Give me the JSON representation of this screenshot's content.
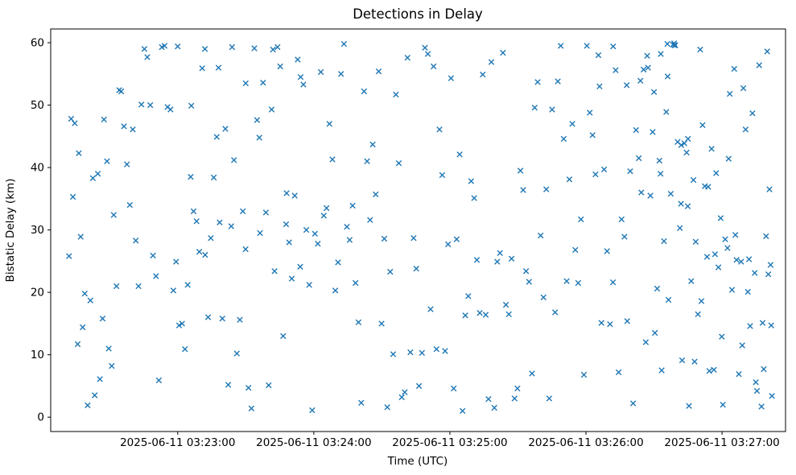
{
  "chart_data": {
    "type": "scatter",
    "title": "Detections in Delay",
    "xlabel": "Time (UTC)",
    "ylabel": "Bistatic Delay (km)",
    "marker": "x",
    "marker_color": "#1f77b4",
    "grid": false,
    "legend": "none",
    "x_axis_note": "x values are seconds after 2025-06-11 03:22:00 UTC",
    "xlim": [
      4,
      328
    ],
    "ylim": [
      -2.3,
      62.2
    ],
    "x_ticks": [
      {
        "t": 60,
        "label": "2025-06-11 03:23:00"
      },
      {
        "t": 120,
        "label": "2025-06-11 03:24:00"
      },
      {
        "t": 180,
        "label": "2025-06-11 03:25:00"
      },
      {
        "t": 240,
        "label": "2025-06-11 03:26:00"
      },
      {
        "t": 300,
        "label": "2025-06-11 03:27:00"
      }
    ],
    "y_ticks": [
      0,
      10,
      20,
      30,
      40,
      50,
      60
    ],
    "points": [
      [
        12.1,
        25.8
      ],
      [
        13.0,
        47.8
      ],
      [
        13.8,
        35.3
      ],
      [
        14.6,
        47.1
      ],
      [
        15.9,
        11.7
      ],
      [
        16.4,
        42.3
      ],
      [
        17.2,
        28.9
      ],
      [
        18.1,
        14.4
      ],
      [
        19.0,
        19.8
      ],
      [
        20.3,
        1.9
      ],
      [
        21.5,
        18.7
      ],
      [
        22.6,
        38.3
      ],
      [
        23.4,
        3.5
      ],
      [
        24.8,
        39.0
      ],
      [
        25.7,
        6.1
      ],
      [
        26.9,
        15.8
      ],
      [
        27.5,
        47.7
      ],
      [
        28.8,
        41.0
      ],
      [
        29.6,
        11.0
      ],
      [
        30.9,
        8.2
      ],
      [
        31.8,
        32.4
      ],
      [
        33.0,
        21.0
      ],
      [
        34.2,
        52.4
      ],
      [
        35.1,
        52.2
      ],
      [
        36.3,
        46.6
      ],
      [
        37.6,
        40.5
      ],
      [
        38.9,
        34.0
      ],
      [
        40.2,
        46.1
      ],
      [
        41.5,
        28.3
      ],
      [
        42.7,
        21.0
      ],
      [
        44.0,
        50.1
      ],
      [
        45.3,
        59.0
      ],
      [
        46.6,
        57.7
      ],
      [
        47.9,
        50.0
      ],
      [
        49.1,
        25.9
      ],
      [
        50.4,
        22.6
      ],
      [
        51.7,
        5.9
      ],
      [
        53.0,
        59.3
      ],
      [
        54.2,
        59.5
      ],
      [
        55.5,
        49.7
      ],
      [
        56.8,
        49.3
      ],
      [
        58.1,
        20.3
      ],
      [
        59.3,
        24.9
      ],
      [
        60.6,
        14.7
      ],
      [
        61.9,
        15.0
      ],
      [
        63.2,
        10.9
      ],
      [
        64.4,
        21.2
      ],
      [
        65.7,
        38.5
      ],
      [
        67.0,
        33.0
      ],
      [
        68.3,
        31.4
      ],
      [
        69.5,
        26.5
      ],
      [
        70.8,
        55.9
      ],
      [
        72.1,
        26.0
      ],
      [
        73.4,
        16.0
      ],
      [
        74.6,
        28.7
      ],
      [
        75.9,
        38.4
      ],
      [
        77.2,
        44.9
      ],
      [
        78.5,
        31.2
      ],
      [
        79.7,
        15.8
      ],
      [
        81.0,
        46.2
      ],
      [
        82.3,
        5.2
      ],
      [
        83.6,
        30.6
      ],
      [
        84.8,
        41.2
      ],
      [
        86.1,
        10.2
      ],
      [
        87.4,
        15.6
      ],
      [
        88.7,
        33.0
      ],
      [
        89.9,
        26.9
      ],
      [
        91.2,
        4.7
      ],
      [
        92.5,
        1.4
      ],
      [
        93.8,
        59.1
      ],
      [
        95.0,
        47.6
      ],
      [
        96.3,
        29.5
      ],
      [
        97.6,
        53.6
      ],
      [
        98.9,
        32.8
      ],
      [
        100.1,
        5.1
      ],
      [
        101.4,
        49.3
      ],
      [
        102.7,
        23.4
      ],
      [
        104.0,
        59.3
      ],
      [
        105.2,
        56.2
      ],
      [
        106.5,
        13.0
      ],
      [
        107.8,
        30.9
      ],
      [
        109.1,
        28.0
      ],
      [
        110.3,
        22.2
      ],
      [
        111.6,
        35.5
      ],
      [
        112.9,
        57.3
      ],
      [
        114.2,
        54.5
      ],
      [
        115.4,
        53.3
      ],
      [
        116.7,
        30.0
      ],
      [
        118.0,
        21.2
      ],
      [
        119.3,
        1.1
      ],
      [
        120.5,
        29.4
      ],
      [
        121.8,
        27.8
      ],
      [
        123.1,
        55.3
      ],
      [
        124.4,
        32.3
      ],
      [
        125.6,
        33.5
      ],
      [
        126.9,
        47.0
      ],
      [
        128.2,
        41.3
      ],
      [
        129.5,
        20.3
      ],
      [
        130.7,
        24.8
      ],
      [
        132.0,
        55.0
      ],
      [
        133.3,
        59.8
      ],
      [
        134.6,
        30.5
      ],
      [
        135.8,
        28.4
      ],
      [
        137.1,
        33.9
      ],
      [
        138.4,
        21.5
      ],
      [
        139.7,
        15.2
      ],
      [
        140.9,
        2.3
      ],
      [
        142.2,
        52.2
      ],
      [
        143.5,
        41.0
      ],
      [
        144.8,
        31.6
      ],
      [
        146.0,
        43.7
      ],
      [
        147.3,
        35.7
      ],
      [
        148.6,
        55.4
      ],
      [
        149.9,
        15.0
      ],
      [
        151.1,
        28.6
      ],
      [
        152.4,
        1.6
      ],
      [
        153.7,
        23.3
      ],
      [
        155.0,
        10.1
      ],
      [
        156.2,
        51.7
      ],
      [
        157.5,
        40.7
      ],
      [
        158.8,
        3.2
      ],
      [
        160.1,
        4.0
      ],
      [
        161.3,
        57.6
      ],
      [
        162.6,
        10.4
      ],
      [
        164.0,
        28.7
      ],
      [
        165.2,
        23.8
      ],
      [
        166.4,
        5.0
      ],
      [
        167.7,
        10.3
      ],
      [
        169.0,
        59.2
      ],
      [
        170.3,
        58.2
      ],
      [
        171.5,
        17.3
      ],
      [
        172.8,
        56.2
      ],
      [
        174.1,
        10.9
      ],
      [
        175.4,
        46.1
      ],
      [
        176.6,
        38.8
      ],
      [
        177.9,
        10.6
      ],
      [
        179.2,
        27.7
      ],
      [
        180.5,
        54.3
      ],
      [
        181.7,
        4.6
      ],
      [
        183.0,
        28.5
      ],
      [
        184.3,
        42.1
      ],
      [
        185.6,
        1.0
      ],
      [
        186.8,
        16.3
      ],
      [
        188.1,
        19.4
      ],
      [
        189.4,
        37.8
      ],
      [
        190.7,
        35.1
      ],
      [
        191.9,
        25.2
      ],
      [
        193.2,
        16.7
      ],
      [
        194.5,
        54.9
      ],
      [
        195.8,
        16.4
      ],
      [
        197.0,
        2.9
      ],
      [
        198.3,
        56.9
      ],
      [
        199.6,
        1.5
      ],
      [
        200.9,
        24.9
      ],
      [
        202.1,
        26.3
      ],
      [
        203.4,
        58.4
      ],
      [
        204.7,
        18.0
      ],
      [
        206.0,
        16.5
      ],
      [
        207.2,
        25.4
      ],
      [
        208.5,
        3.0
      ],
      [
        209.8,
        4.6
      ],
      [
        211.1,
        39.5
      ],
      [
        212.3,
        36.4
      ],
      [
        213.6,
        23.4
      ],
      [
        214.9,
        21.7
      ],
      [
        216.2,
        7.0
      ],
      [
        217.4,
        49.6
      ],
      [
        218.7,
        53.7
      ],
      [
        220.0,
        29.1
      ],
      [
        221.3,
        19.2
      ],
      [
        222.5,
        36.5
      ],
      [
        223.8,
        3.0
      ],
      [
        225.1,
        49.3
      ],
      [
        226.4,
        16.8
      ],
      [
        227.6,
        53.8
      ],
      [
        228.9,
        59.5
      ],
      [
        230.2,
        44.6
      ],
      [
        231.5,
        21.8
      ],
      [
        232.7,
        38.1
      ],
      [
        234.0,
        47.0
      ],
      [
        235.3,
        26.8
      ],
      [
        236.6,
        21.5
      ],
      [
        237.8,
        31.7
      ],
      [
        239.1,
        6.8
      ],
      [
        240.4,
        59.5
      ],
      [
        241.7,
        48.8
      ],
      [
        242.9,
        45.2
      ],
      [
        244.2,
        38.9
      ],
      [
        245.5,
        58.0
      ],
      [
        246.8,
        15.1
      ],
      [
        248.0,
        39.7
      ],
      [
        249.3,
        26.6
      ],
      [
        250.6,
        14.9
      ],
      [
        251.9,
        21.6
      ],
      [
        253.1,
        55.6
      ],
      [
        254.4,
        7.2
      ],
      [
        255.7,
        31.7
      ],
      [
        257.0,
        28.9
      ],
      [
        258.2,
        15.4
      ],
      [
        259.5,
        39.4
      ],
      [
        260.8,
        2.2
      ],
      [
        262.1,
        46.0
      ],
      [
        263.3,
        41.5
      ],
      [
        264.4,
        36.0
      ],
      [
        265.4,
        55.7
      ],
      [
        266.4,
        12.0
      ],
      [
        267.4,
        56.0
      ],
      [
        268.4,
        35.5
      ],
      [
        269.4,
        45.7
      ],
      [
        270.4,
        13.5
      ],
      [
        271.4,
        20.6
      ],
      [
        272.4,
        41.1
      ],
      [
        273.4,
        7.5
      ],
      [
        274.4,
        28.2
      ],
      [
        275.4,
        48.9
      ],
      [
        276.4,
        18.8
      ],
      [
        277.4,
        35.8
      ],
      [
        278.4,
        59.7
      ],
      [
        279.4,
        59.6
      ],
      [
        280.4,
        44.1
      ],
      [
        281.4,
        30.3
      ],
      [
        282.4,
        9.1
      ],
      [
        283.4,
        43.9
      ],
      [
        284.4,
        42.4
      ],
      [
        285.4,
        1.8
      ],
      [
        286.4,
        21.8
      ],
      [
        287.4,
        38.0
      ],
      [
        288.4,
        28.1
      ],
      [
        289.4,
        16.5
      ],
      [
        290.4,
        58.9
      ],
      [
        291.4,
        46.8
      ],
      [
        292.4,
        37.0
      ],
      [
        293.4,
        25.7
      ],
      [
        294.4,
        7.4
      ],
      [
        295.4,
        43.0
      ],
      [
        296.4,
        7.6
      ],
      [
        297.4,
        39.1
      ],
      [
        298.4,
        24.0
      ],
      [
        299.4,
        31.9
      ],
      [
        300.4,
        2.0
      ],
      [
        301.4,
        28.5
      ],
      [
        302.4,
        27.1
      ],
      [
        303.4,
        51.8
      ],
      [
        304.4,
        20.4
      ],
      [
        305.4,
        55.8
      ],
      [
        306.4,
        25.2
      ],
      [
        307.4,
        6.9
      ],
      [
        308.4,
        24.9
      ],
      [
        309.4,
        52.7
      ],
      [
        310.4,
        46.1
      ],
      [
        311.4,
        20.1
      ],
      [
        312.4,
        14.6
      ],
      [
        313.4,
        48.7
      ],
      [
        314.4,
        23.1
      ],
      [
        315.4,
        4.2
      ],
      [
        316.4,
        56.4
      ],
      [
        317.4,
        1.7
      ],
      [
        318.4,
        7.7
      ],
      [
        319.4,
        29.0
      ],
      [
        320.4,
        22.9
      ],
      [
        321.4,
        24.4
      ],
      [
        322.0,
        3.4
      ],
      [
        270.0,
        52.1
      ],
      [
        272.9,
        39.0
      ],
      [
        275.9,
        59.8
      ],
      [
        278.9,
        59.9
      ],
      [
        281.9,
        34.2
      ],
      [
        284.9,
        33.8
      ],
      [
        287.9,
        8.9
      ],
      [
        290.9,
        18.6
      ],
      [
        293.9,
        36.9
      ],
      [
        296.9,
        26.1
      ],
      [
        299.9,
        12.9
      ],
      [
        302.9,
        41.4
      ],
      [
        305.9,
        29.2
      ],
      [
        308.9,
        11.5
      ],
      [
        311.9,
        25.3
      ],
      [
        314.9,
        5.6
      ],
      [
        317.9,
        15.1
      ],
      [
        320.9,
        36.5
      ],
      [
        321.7,
        14.7
      ],
      [
        319.9,
        58.6
      ],
      [
        246.0,
        53.0
      ],
      [
        252.0,
        59.4
      ],
      [
        258.0,
        53.2
      ],
      [
        264.0,
        53.9
      ],
      [
        267.0,
        57.9
      ],
      [
        273.0,
        58.2
      ],
      [
        276.0,
        54.6
      ],
      [
        279.0,
        59.6
      ],
      [
        282.0,
        43.6
      ],
      [
        285.0,
        44.6
      ],
      [
        60.0,
        59.4
      ],
      [
        66.0,
        49.9
      ],
      [
        72.0,
        59.0
      ],
      [
        78.0,
        56.0
      ],
      [
        84.0,
        59.3
      ],
      [
        90.0,
        53.5
      ],
      [
        96.0,
        44.8
      ],
      [
        102.0,
        58.9
      ],
      [
        108.0,
        35.9
      ],
      [
        114.0,
        24.1
      ]
    ]
  }
}
